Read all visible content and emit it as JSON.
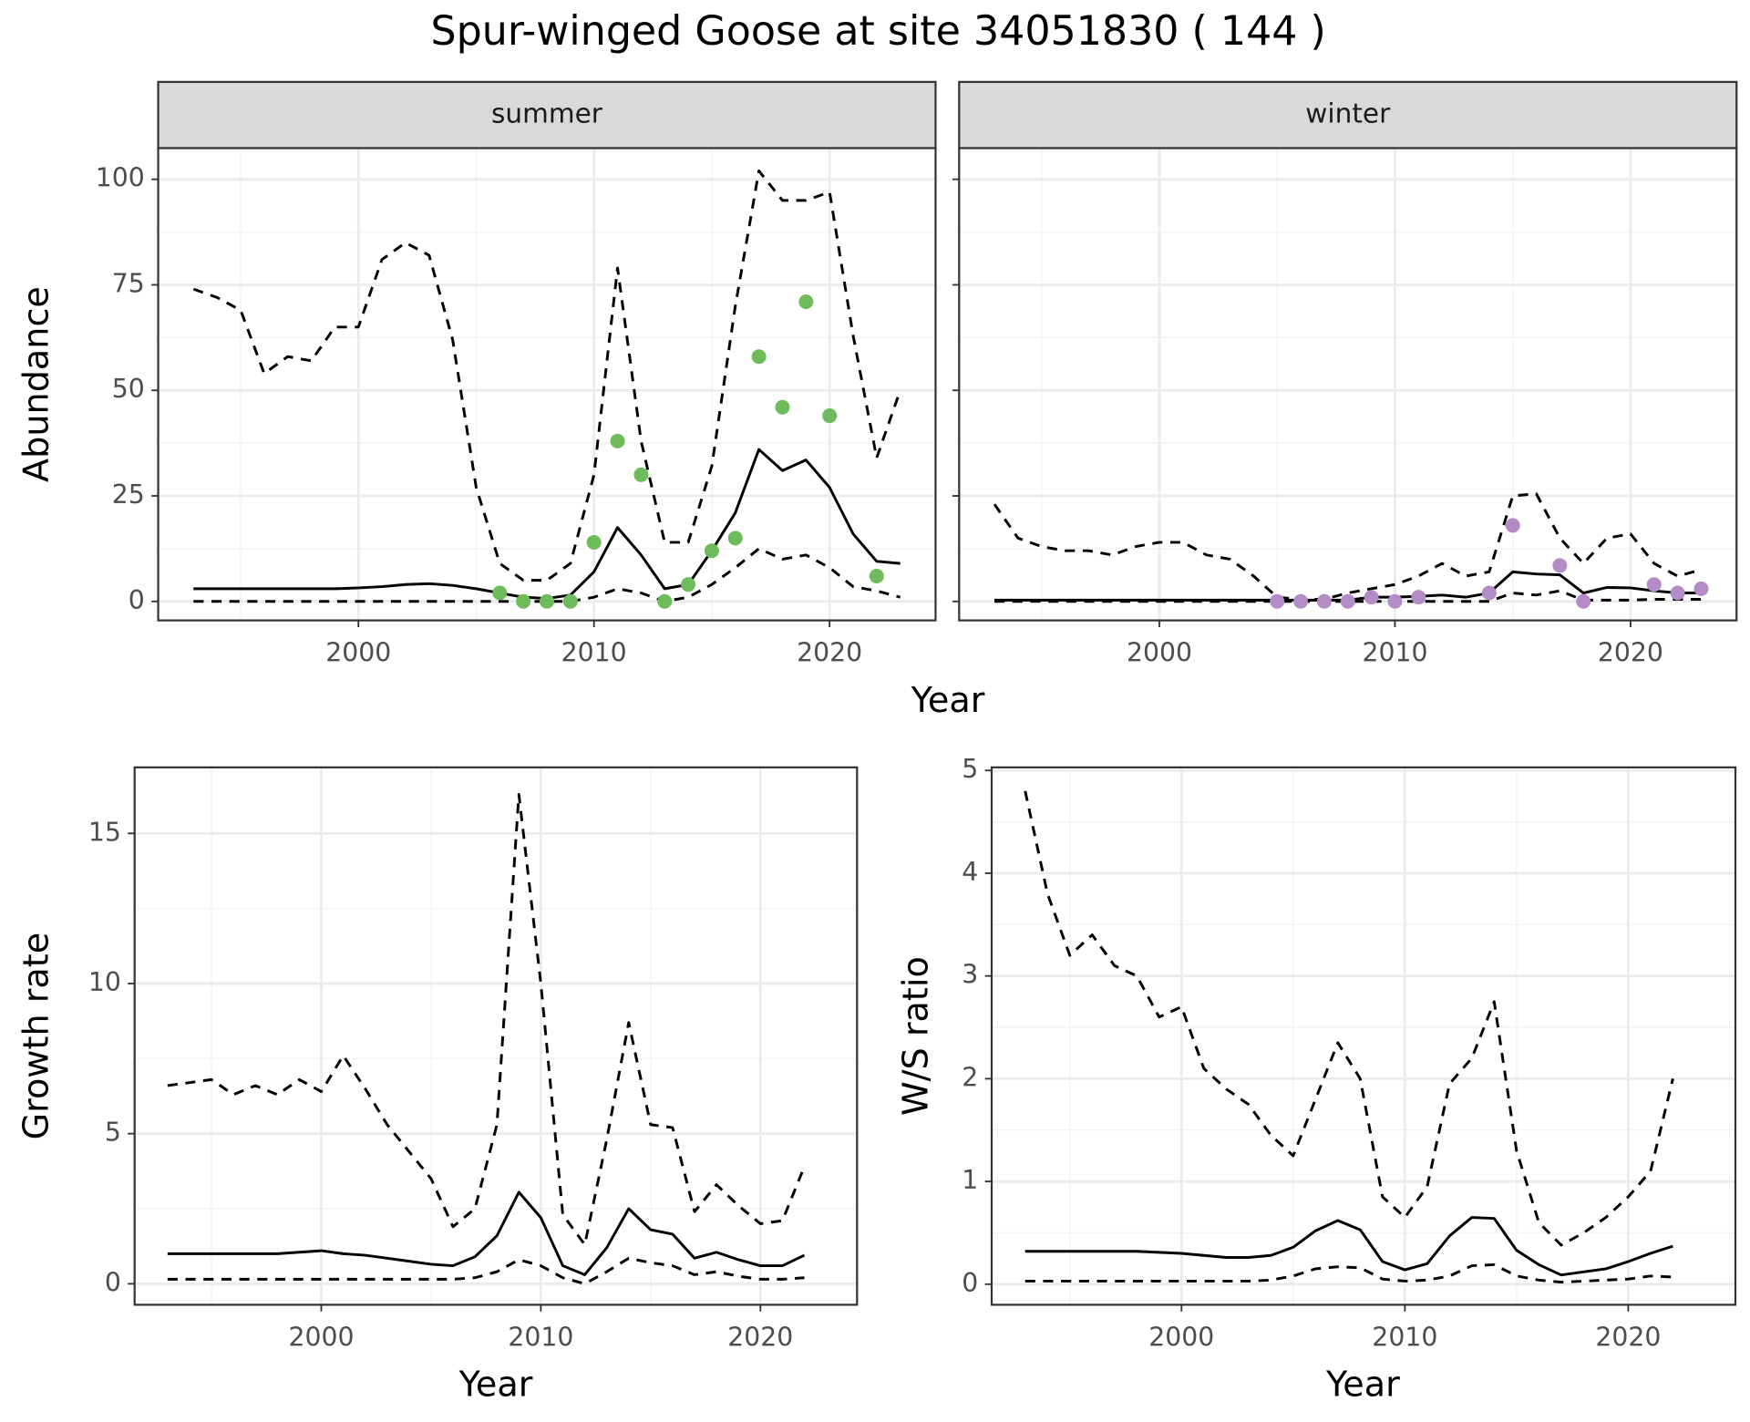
{
  "title": "Spur-winged Goose at site 34051830 ( 144 )",
  "chart_data": [
    {
      "type": "line",
      "facet": "summer",
      "ylabel": "Abundance",
      "xlabel": "Year",
      "x": [
        1993,
        1994,
        1995,
        1996,
        1997,
        1998,
        1999,
        2000,
        2001,
        2002,
        2003,
        2004,
        2005,
        2006,
        2007,
        2008,
        2009,
        2010,
        2011,
        2012,
        2013,
        2014,
        2015,
        2016,
        2017,
        2018,
        2019,
        2020,
        2021,
        2022,
        2023
      ],
      "xlim": [
        1991.5,
        2024.5
      ],
      "xticks": [
        2000,
        2010,
        2020
      ],
      "ylim": [
        -4.5,
        107.4
      ],
      "yticks": [
        0,
        25,
        50,
        75,
        100
      ],
      "grid": true,
      "minor_grid": true,
      "series": [
        {
          "kind": "line",
          "style": "dashed",
          "color": "#000000",
          "values": [
            74,
            72,
            69,
            54,
            58,
            57,
            65,
            65,
            81,
            85,
            82,
            62,
            27,
            9,
            5,
            5,
            9,
            30,
            79,
            38,
            14,
            14,
            32,
            70,
            102,
            95,
            95,
            97,
            63,
            34,
            50
          ]
        },
        {
          "kind": "line",
          "style": "solid",
          "color": "#000000",
          "values": [
            3,
            3,
            3,
            3,
            3,
            3,
            3,
            3.2,
            3.5,
            4,
            4.2,
            3.8,
            3,
            2,
            1,
            0.7,
            1.5,
            7,
            17.5,
            11,
            3,
            4,
            12,
            21,
            36,
            31,
            33.5,
            27,
            16,
            9.5,
            9
          ]
        },
        {
          "kind": "line",
          "style": "dashed",
          "color": "#000000",
          "values": [
            0,
            0,
            0,
            0,
            0,
            0,
            0,
            0,
            0,
            0,
            0,
            0,
            0,
            0,
            0,
            0,
            0,
            1,
            3,
            2,
            0,
            1,
            4,
            8,
            12.5,
            10,
            11,
            8,
            3.5,
            2.5,
            1
          ]
        },
        {
          "kind": "points",
          "color": "#6dbb5a",
          "x": [
            2006,
            2007,
            2008,
            2009,
            2010,
            2011,
            2012,
            2013,
            2014,
            2015,
            2016,
            2017,
            2018,
            2019,
            2020,
            2022
          ],
          "values": [
            2,
            0,
            0,
            0,
            14,
            38,
            30,
            0,
            4,
            12,
            15,
            58,
            46,
            71,
            44,
            6
          ]
        }
      ]
    },
    {
      "type": "line",
      "facet": "winter",
      "yticklabels": false,
      "x": [
        1993,
        1994,
        1995,
        1996,
        1997,
        1998,
        1999,
        2000,
        2001,
        2002,
        2003,
        2004,
        2005,
        2006,
        2007,
        2008,
        2009,
        2010,
        2011,
        2012,
        2013,
        2014,
        2015,
        2016,
        2017,
        2018,
        2019,
        2020,
        2021,
        2022,
        2023
      ],
      "xlim": [
        1991.5,
        2024.5
      ],
      "xticks": [
        2000,
        2010,
        2020
      ],
      "ylim": [
        -4.5,
        107.4
      ],
      "yticks": [
        0,
        25,
        50,
        75,
        100
      ],
      "grid": true,
      "minor_grid": true,
      "series": [
        {
          "kind": "line",
          "style": "dashed",
          "color": "#000000",
          "values": [
            23,
            15,
            13,
            12,
            12,
            11,
            13,
            14,
            14,
            11,
            10,
            6,
            1,
            0.5,
            0.5,
            2,
            3,
            4,
            6,
            9,
            6,
            7,
            25,
            25.5,
            15,
            9,
            15,
            16,
            9,
            6,
            7.5
          ]
        },
        {
          "kind": "line",
          "style": "solid",
          "color": "#000000",
          "values": [
            0.3,
            0.3,
            0.3,
            0.3,
            0.3,
            0.3,
            0.3,
            0.3,
            0.3,
            0.3,
            0.3,
            0.3,
            0.3,
            0.3,
            0.3,
            0.3,
            1,
            1,
            1.2,
            1.5,
            1,
            2,
            7,
            6.5,
            6.3,
            2,
            3.3,
            3.2,
            2.5,
            2,
            2
          ]
        },
        {
          "kind": "line",
          "style": "dashed",
          "color": "#000000",
          "values": [
            0,
            0,
            0,
            0,
            0,
            0,
            0,
            0,
            0,
            0,
            0,
            0,
            0,
            0,
            0,
            0,
            0,
            0,
            0,
            0,
            0,
            0,
            2,
            1.5,
            2.5,
            0.3,
            0.3,
            0.3,
            0.5,
            0.5,
            0.5
          ]
        },
        {
          "kind": "points",
          "color": "#b38bc6",
          "x": [
            2005,
            2006,
            2007,
            2008,
            2009,
            2010,
            2011,
            2014,
            2015,
            2017,
            2018,
            2021,
            2022,
            2023
          ],
          "values": [
            0,
            0,
            0,
            0,
            1,
            0,
            1,
            2,
            18,
            8.5,
            0,
            4,
            2,
            3
          ]
        }
      ]
    },
    {
      "type": "line",
      "ylabel": "Growth rate",
      "xlabel": "Year",
      "x": [
        1993,
        1994,
        1995,
        1996,
        1997,
        1998,
        1999,
        2000,
        2001,
        2002,
        2003,
        2004,
        2005,
        2006,
        2007,
        2008,
        2009,
        2010,
        2011,
        2012,
        2013,
        2014,
        2015,
        2016,
        2017,
        2018,
        2019,
        2020,
        2021,
        2022
      ],
      "xlim": [
        1991.5,
        2024.4
      ],
      "xticks": [
        2000,
        2010,
        2020
      ],
      "ylim": [
        -0.7,
        17.2
      ],
      "yticks": [
        0,
        5,
        10,
        15
      ],
      "grid": true,
      "minor_grid": true,
      "series": [
        {
          "kind": "line",
          "style": "dashed",
          "color": "#000000",
          "values": [
            6.6,
            6.7,
            6.8,
            6.3,
            6.6,
            6.3,
            6.8,
            6.4,
            7.6,
            6.5,
            5.3,
            4.4,
            3.5,
            1.9,
            2.5,
            5.3,
            16.3,
            10,
            2.3,
            1.3,
            4.8,
            8.7,
            5.3,
            5.2,
            2.4,
            3.3,
            2.6,
            2,
            2.1,
            3.9
          ]
        },
        {
          "kind": "line",
          "style": "solid",
          "color": "#000000",
          "values": [
            1,
            1,
            1,
            1,
            1,
            1,
            1.05,
            1.1,
            1,
            0.95,
            0.85,
            0.75,
            0.65,
            0.6,
            0.9,
            1.6,
            3.05,
            2.2,
            0.6,
            0.3,
            1.2,
            2.5,
            1.8,
            1.65,
            0.85,
            1.05,
            0.8,
            0.6,
            0.6,
            0.95
          ]
        },
        {
          "kind": "line",
          "style": "dashed",
          "color": "#000000",
          "values": [
            0.15,
            0.15,
            0.15,
            0.15,
            0.15,
            0.15,
            0.15,
            0.15,
            0.15,
            0.15,
            0.15,
            0.15,
            0.15,
            0.15,
            0.2,
            0.4,
            0.8,
            0.6,
            0.2,
            0,
            0.4,
            0.85,
            0.7,
            0.6,
            0.3,
            0.4,
            0.25,
            0.15,
            0.15,
            0.2
          ]
        }
      ]
    },
    {
      "type": "line",
      "ylabel": "W/S ratio",
      "xlabel": "Year",
      "x": [
        1993,
        1994,
        1995,
        1996,
        1997,
        1998,
        1999,
        2000,
        2001,
        2002,
        2003,
        2004,
        2005,
        2006,
        2007,
        2008,
        2009,
        2010,
        2011,
        2012,
        2013,
        2014,
        2015,
        2016,
        2017,
        2018,
        2019,
        2020,
        2021,
        2022
      ],
      "xlim": [
        1991.5,
        2024.8
      ],
      "xticks": [
        2000,
        2010,
        2020
      ],
      "ylim": [
        -0.2,
        5.03
      ],
      "yticks": [
        0,
        1,
        2,
        3,
        4,
        5
      ],
      "grid": true,
      "minor_grid": true,
      "series": [
        {
          "kind": "line",
          "style": "dashed",
          "color": "#000000",
          "values": [
            4.8,
            3.8,
            3.2,
            3.4,
            3.1,
            3,
            2.6,
            2.7,
            2.1,
            1.9,
            1.75,
            1.45,
            1.25,
            1.8,
            2.35,
            2,
            0.85,
            0.65,
            0.95,
            1.95,
            2.2,
            2.75,
            1.3,
            0.6,
            0.38,
            0.5,
            0.65,
            0.85,
            1.1,
            2
          ]
        },
        {
          "kind": "line",
          "style": "solid",
          "color": "#000000",
          "values": [
            0.32,
            0.32,
            0.32,
            0.32,
            0.32,
            0.32,
            0.31,
            0.3,
            0.28,
            0.26,
            0.26,
            0.28,
            0.36,
            0.52,
            0.62,
            0.53,
            0.22,
            0.14,
            0.2,
            0.47,
            0.65,
            0.64,
            0.33,
            0.19,
            0.09,
            0.12,
            0.15,
            0.22,
            0.3,
            0.37
          ]
        },
        {
          "kind": "line",
          "style": "dashed",
          "color": "#000000",
          "values": [
            0.03,
            0.03,
            0.03,
            0.03,
            0.03,
            0.03,
            0.03,
            0.03,
            0.03,
            0.03,
            0.03,
            0.04,
            0.08,
            0.15,
            0.17,
            0.16,
            0.05,
            0.03,
            0.04,
            0.08,
            0.18,
            0.19,
            0.08,
            0.04,
            0.02,
            0.03,
            0.04,
            0.05,
            0.08,
            0.07
          ]
        }
      ]
    }
  ]
}
